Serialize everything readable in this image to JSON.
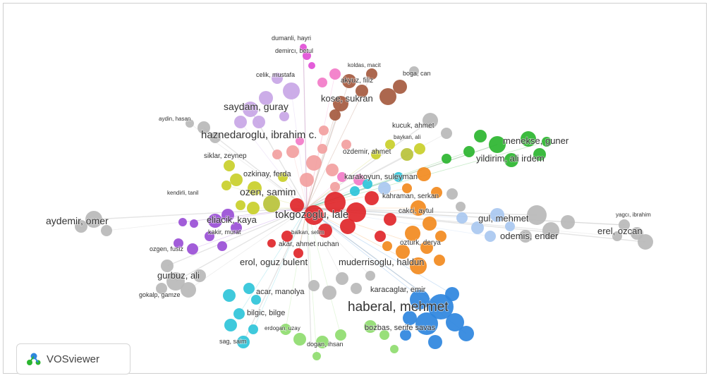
{
  "brand": {
    "name": "VOSviewer",
    "icon": "vosviewer-logo-icon"
  },
  "clusters": {
    "red": "#e0262a",
    "green": "#2bb52f",
    "blue": "#2e86de",
    "yellow": "#c9cf2a",
    "purple": "#9a4fd6",
    "cyan": "#2fc4d9",
    "orange": "#f28a1e",
    "brown": "#a55a3f",
    "pink": "#f27bc8",
    "lightpurple": "#c8a6e6",
    "salmon": "#f2a0a0",
    "grey": "#b8b8b8",
    "lightgreen": "#8fdc6f",
    "lightblue": "#a9c8f0",
    "olive": "#b9c23a",
    "magenta": "#e14fd6"
  },
  "labels": [
    {
      "text": "dumanli, hayri",
      "size": 9
    },
    {
      "text": "demircı, betul",
      "size": 9
    },
    {
      "text": "koldas, macit",
      "size": 8
    },
    {
      "text": "boga, can",
      "size": 9
    },
    {
      "text": "celik, mustafa",
      "size": 9
    },
    {
      "text": "akyuz, filiz",
      "size": 10
    },
    {
      "text": "kose, sukran",
      "size": 13
    },
    {
      "text": "saydam, guray",
      "size": 14
    },
    {
      "text": "aydin, hasan",
      "size": 8
    },
    {
      "text": "kucuk, ahmet",
      "size": 10
    },
    {
      "text": "haznedaroglu, ibrahim c.",
      "size": 15
    },
    {
      "text": "baykan, ali",
      "size": 8
    },
    {
      "text": "menekse, guner",
      "size": 13
    },
    {
      "text": "ozdemir, ahmet",
      "size": 10
    },
    {
      "text": "yildirim, ali irdem",
      "size": 13
    },
    {
      "text": "siklar, zeynep",
      "size": 10
    },
    {
      "text": "ozkinay, ferda",
      "size": 11
    },
    {
      "text": "karakoyun, suleyman",
      "size": 11
    },
    {
      "text": "kendirli, tanil",
      "size": 8
    },
    {
      "text": "ozen, samim",
      "size": 14
    },
    {
      "text": "kahraman, serkan",
      "size": 10
    },
    {
      "text": "aydemir, omer",
      "size": 14
    },
    {
      "text": "tokgozoglu, lale",
      "size": 15
    },
    {
      "text": "cakci, aytul",
      "size": 10
    },
    {
      "text": "gul, mehmet",
      "size": 13
    },
    {
      "text": "yagcı, ibrahim",
      "size": 8
    },
    {
      "text": "eliacik, kaya",
      "size": 13
    },
    {
      "text": "kakir, murat",
      "size": 9
    },
    {
      "text": "balkan, selim",
      "size": 8
    },
    {
      "text": "odemis, ender",
      "size": 13
    },
    {
      "text": "erel, ozcan",
      "size": 13
    },
    {
      "text": "ozgen, fusiz",
      "size": 9
    },
    {
      "text": "akar, ahmet ruchan",
      "size": 10
    },
    {
      "text": "ozturk, derya",
      "size": 10
    },
    {
      "text": "erol, oguz bulent",
      "size": 13
    },
    {
      "text": "muderrisoglu, haldun",
      "size": 13
    },
    {
      "text": "gurbuz, ali",
      "size": 13
    },
    {
      "text": "acar, manolya",
      "size": 11
    },
    {
      "text": "karacaglar, emir",
      "size": 11
    },
    {
      "text": "gokalp, gamze",
      "size": 9
    },
    {
      "text": "haberal, mehmet",
      "size": 19
    },
    {
      "text": "bilgic, bilge",
      "size": 11
    },
    {
      "text": "erdogan, uzay",
      "size": 8
    },
    {
      "text": "bozbas, serife savas",
      "size": 11
    },
    {
      "text": "sag, saim",
      "size": 9
    },
    {
      "text": "dogan, ihsan",
      "size": 9
    }
  ]
}
